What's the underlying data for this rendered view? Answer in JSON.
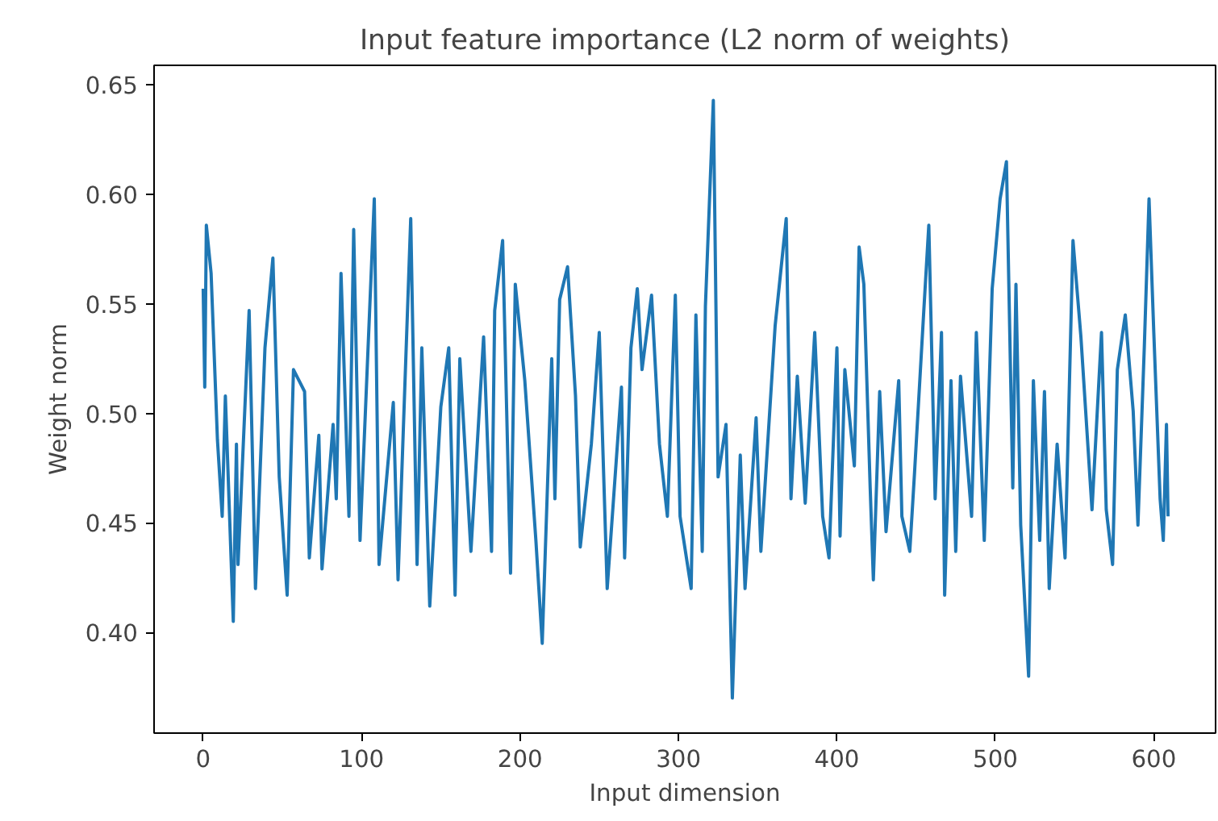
{
  "chart_data": {
    "type": "line",
    "title": "Input feature importance (L2 norm of weights)",
    "xlabel": "Input dimension",
    "ylabel": "Weight norm",
    "xlim": [
      -31,
      639
    ],
    "ylim": [
      0.354,
      0.659
    ],
    "xticks": [
      0,
      100,
      200,
      300,
      400,
      500,
      600
    ],
    "yticks": [
      {
        "value": 0.4,
        "label": "0.40"
      },
      {
        "value": 0.45,
        "label": "0.45"
      },
      {
        "value": 0.5,
        "label": "0.50"
      },
      {
        "value": 0.55,
        "label": "0.55"
      },
      {
        "value": 0.6,
        "label": "0.60"
      },
      {
        "value": 0.65,
        "label": "0.65"
      }
    ],
    "grid": false,
    "line_style": "solid",
    "series": [
      {
        "color": "#1f77b4",
        "x": [
          0,
          1,
          2,
          5,
          9,
          12,
          14,
          19,
          21,
          22,
          29,
          33,
          39,
          44,
          48,
          53,
          57,
          64,
          67,
          73,
          75,
          82,
          84,
          87,
          92,
          95,
          99,
          108,
          111,
          120,
          123,
          131,
          135,
          138,
          143,
          150,
          155,
          159,
          162,
          169,
          177,
          182,
          184,
          189,
          194,
          197,
          203,
          210,
          214,
          220,
          222,
          225,
          230,
          235,
          238,
          245,
          250,
          255,
          264,
          266,
          270,
          274,
          277,
          283,
          288,
          293,
          298,
          301,
          308,
          311,
          315,
          317,
          322,
          325,
          330,
          334,
          339,
          342,
          349,
          352,
          361,
          368,
          371,
          375,
          380,
          386,
          391,
          395,
          400,
          402,
          405,
          411,
          414,
          417,
          421,
          423,
          427,
          431,
          439,
          441,
          446,
          449,
          455,
          458,
          462,
          466,
          468,
          472,
          475,
          478,
          485,
          488,
          493,
          498,
          503,
          507,
          511,
          513,
          516,
          521,
          524,
          528,
          531,
          534,
          539,
          544,
          549,
          554,
          561,
          567,
          570,
          574,
          577,
          582,
          587,
          590,
          594,
          597,
          600,
          604,
          606,
          608,
          609
        ],
        "values": [
          0.557,
          0.512,
          0.586,
          0.564,
          0.488,
          0.453,
          0.508,
          0.405,
          0.486,
          0.431,
          0.547,
          0.42,
          0.53,
          0.571,
          0.471,
          0.417,
          0.52,
          0.51,
          0.434,
          0.49,
          0.429,
          0.495,
          0.461,
          0.564,
          0.453,
          0.584,
          0.442,
          0.598,
          0.431,
          0.505,
          0.424,
          0.589,
          0.431,
          0.53,
          0.412,
          0.503,
          0.53,
          0.417,
          0.525,
          0.437,
          0.535,
          0.437,
          0.547,
          0.579,
          0.427,
          0.559,
          0.515,
          0.442,
          0.395,
          0.525,
          0.461,
          0.552,
          0.567,
          0.508,
          0.439,
          0.486,
          0.537,
          0.42,
          0.512,
          0.434,
          0.53,
          0.557,
          0.52,
          0.554,
          0.486,
          0.453,
          0.554,
          0.453,
          0.42,
          0.545,
          0.437,
          0.549,
          0.643,
          0.471,
          0.495,
          0.37,
          0.481,
          0.42,
          0.498,
          0.437,
          0.54,
          0.589,
          0.461,
          0.517,
          0.459,
          0.537,
          0.453,
          0.434,
          0.53,
          0.444,
          0.52,
          0.476,
          0.576,
          0.559,
          0.466,
          0.424,
          0.51,
          0.446,
          0.515,
          0.453,
          0.437,
          0.473,
          0.549,
          0.586,
          0.461,
          0.537,
          0.417,
          0.515,
          0.437,
          0.517,
          0.453,
          0.537,
          0.442,
          0.557,
          0.598,
          0.615,
          0.466,
          0.559,
          0.449,
          0.38,
          0.515,
          0.442,
          0.51,
          0.42,
          0.486,
          0.434,
          0.579,
          0.535,
          0.456,
          0.537,
          0.456,
          0.431,
          0.52,
          0.545,
          0.501,
          0.449,
          0.53,
          0.598,
          0.537,
          0.461,
          0.442,
          0.495,
          0.453
        ]
      }
    ]
  }
}
